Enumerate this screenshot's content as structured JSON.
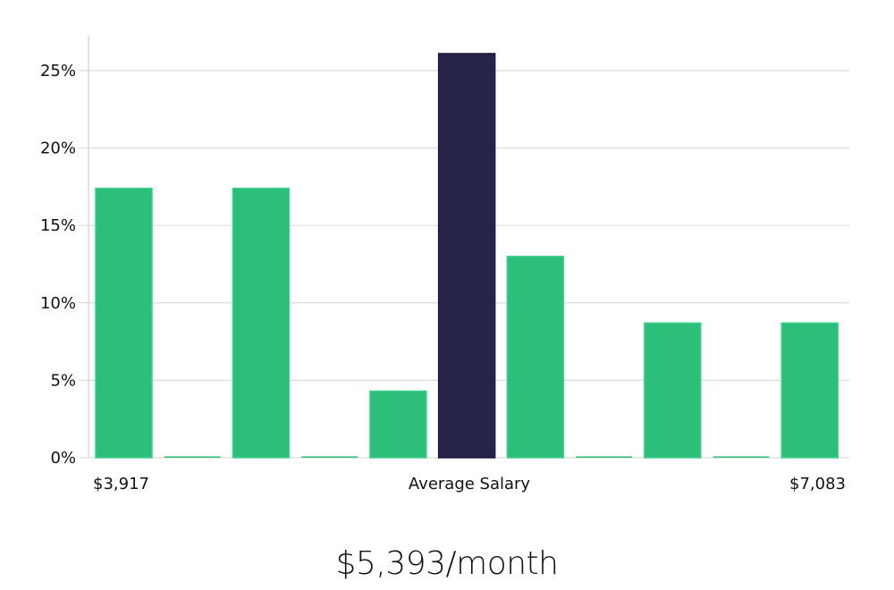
{
  "chart_data": {
    "type": "bar",
    "title": "",
    "xlabel": "Average Salary",
    "ylabel": "",
    "ylim": [
      0,
      27
    ],
    "yticks": [
      0,
      5,
      10,
      15,
      20,
      25
    ],
    "ytick_labels": [
      "0%",
      "5%",
      "10%",
      "15%",
      "20%",
      "25%"
    ],
    "x_min_label": "$3,917",
    "x_max_label": "$7,083",
    "grid": "horizontal",
    "categories": [
      "bin1",
      "bin2",
      "bin3",
      "bin4",
      "bin5",
      "bin6",
      "bin7",
      "bin8",
      "bin9",
      "bin10",
      "bin11"
    ],
    "values": [
      17.4,
      0,
      17.4,
      0,
      4.3,
      26.1,
      13.0,
      0,
      8.7,
      0,
      8.7
    ],
    "highlight_index": 5,
    "colors": {
      "bar": "#2bbf7a",
      "highlight": "#27244a",
      "grid": "#dcdcdc"
    }
  },
  "summary": {
    "average_salary_label": "$5,393/month"
  }
}
